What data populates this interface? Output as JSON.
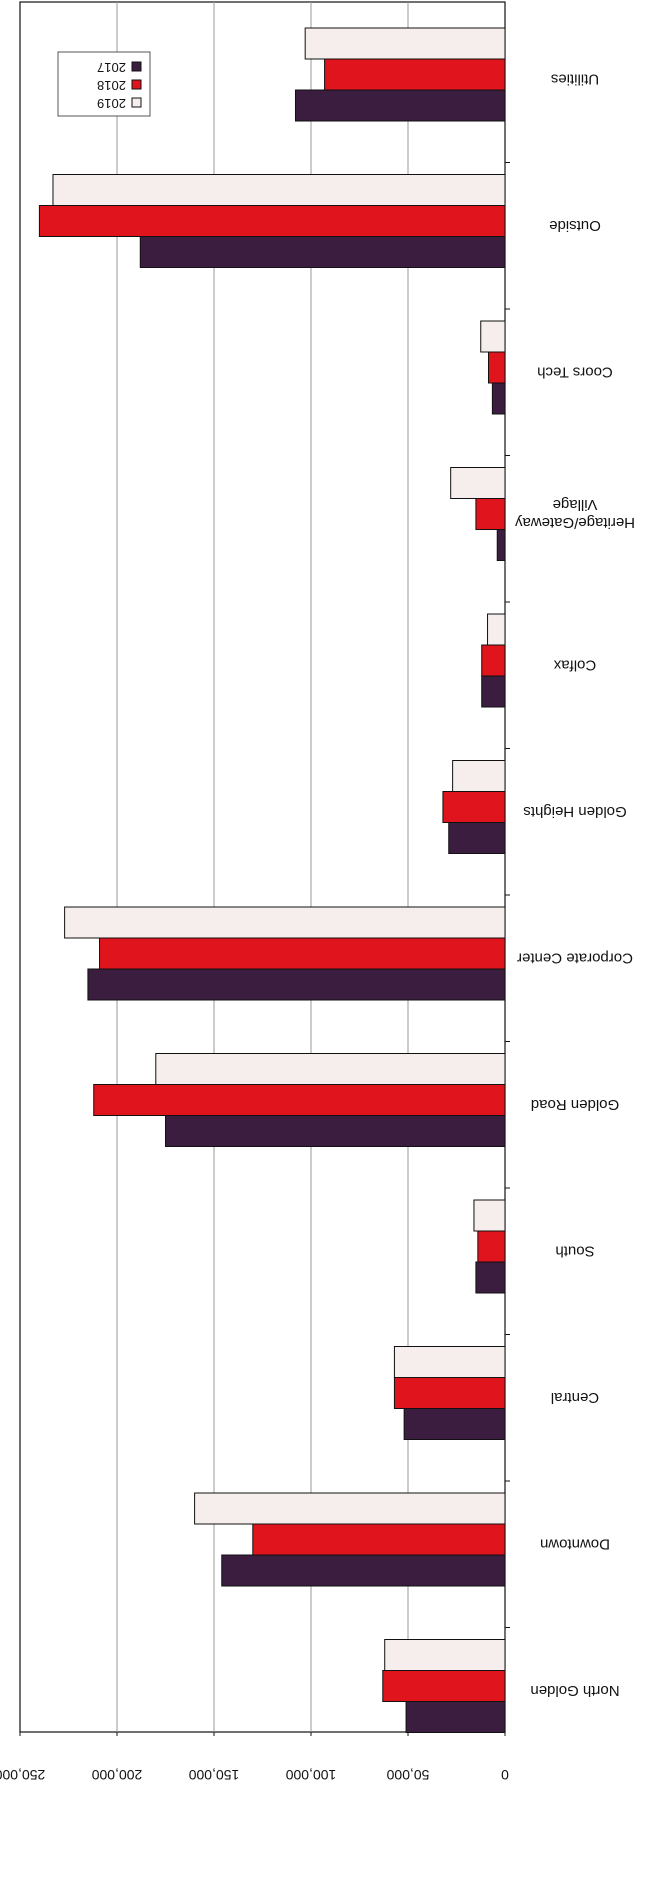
{
  "chart_data": {
    "type": "bar",
    "orientation": "horizontal",
    "categories": [
      "Utilities",
      "Outside",
      "Coors Tech",
      "Heritage/Gateway Village",
      "Colfax",
      "Golden Heights",
      "Corporate Center",
      "Golden Road",
      "South",
      "Central",
      "Downtown",
      "North Golden"
    ],
    "series": [
      {
        "name": "2017",
        "color": "#3a1d3f",
        "values": [
          108000,
          188000,
          6500,
          4000,
          12000,
          29000,
          215000,
          175000,
          15000,
          52000,
          146000,
          51000
        ]
      },
      {
        "name": "2018",
        "color": "#e0141c",
        "values": [
          93000,
          240000,
          8500,
          15000,
          12000,
          32000,
          209000,
          212000,
          14000,
          57000,
          130000,
          63000
        ]
      },
      {
        "name": "2019",
        "color": "#f5eeec",
        "values": [
          103000,
          233000,
          12500,
          28000,
          9000,
          27000,
          227000,
          180000,
          16000,
          57000,
          160000,
          62000
        ]
      }
    ],
    "ticks": [
      "250,000",
      "200,000",
      "150,000",
      "100,000",
      "50,000",
      "0"
    ],
    "xlim": [
      0,
      250000
    ],
    "grid": true,
    "legend": "top-left",
    "rotated": "180deg"
  }
}
